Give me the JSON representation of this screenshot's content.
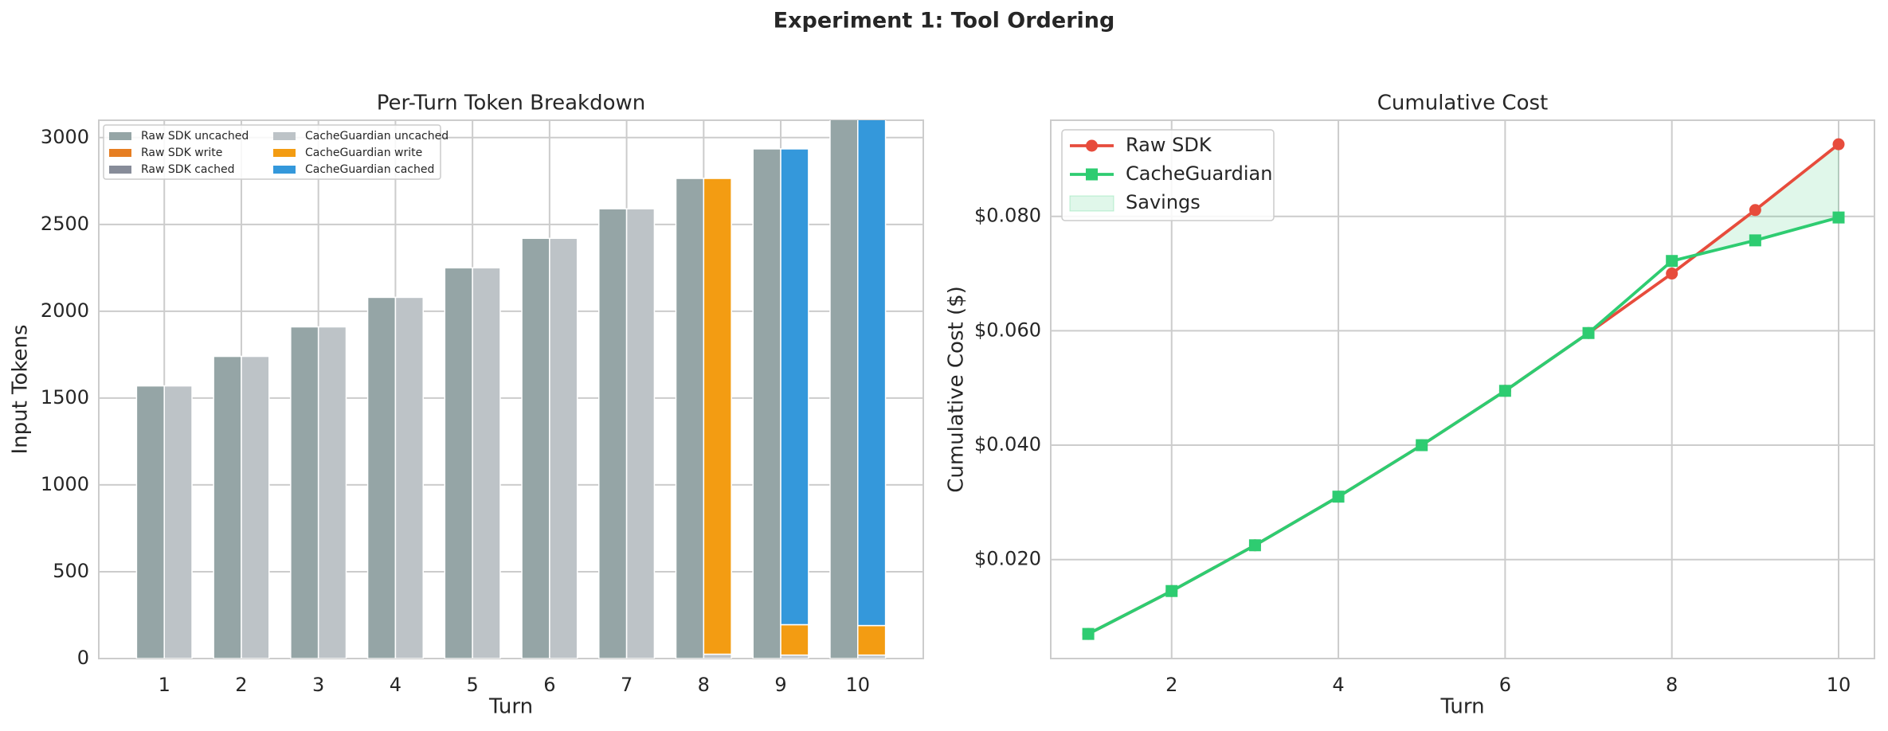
{
  "title": "Experiment 1: Tool Ordering",
  "chart_data": [
    {
      "type": "bar",
      "title": "Per-Turn Token Breakdown",
      "x_label": "Turn",
      "y_label": "Input Tokens",
      "categories": [
        "1",
        "2",
        "3",
        "4",
        "5",
        "6",
        "7",
        "8",
        "9",
        "10"
      ],
      "series": [
        {
          "name": "Raw SDK uncached",
          "color": "#95a5a6",
          "stack": 0,
          "values": [
            1570,
            1740,
            1910,
            2080,
            2250,
            2420,
            2590,
            2765,
            2935,
            3105
          ]
        },
        {
          "name": "Raw SDK write",
          "color": "#e67e22",
          "stack": 0,
          "values": [
            0,
            0,
            0,
            0,
            0,
            0,
            0,
            0,
            0,
            0
          ]
        },
        {
          "name": "Raw SDK cached",
          "color": "#878c99",
          "stack": 0,
          "values": [
            0,
            0,
            0,
            0,
            0,
            0,
            0,
            0,
            0,
            0
          ]
        },
        {
          "name": "CacheGuardian uncached",
          "color": "#bdc3c7",
          "stack": 1,
          "values": [
            1570,
            1740,
            1910,
            2080,
            2250,
            2420,
            2590,
            25,
            20,
            20
          ]
        },
        {
          "name": "CacheGuardian write",
          "color": "#f39c12",
          "stack": 1,
          "values": [
            0,
            0,
            0,
            0,
            0,
            0,
            0,
            2740,
            175,
            170
          ]
        },
        {
          "name": "CacheGuardian cached",
          "color": "#3498db",
          "stack": 1,
          "values": [
            0,
            0,
            0,
            0,
            0,
            0,
            0,
            0,
            2740,
            2915
          ]
        }
      ],
      "ylim": [
        0,
        3100
      ],
      "yticks": [
        0,
        500,
        1000,
        1500,
        2000,
        2500,
        3000
      ],
      "grid": true,
      "legend": "upper left",
      "legend_columns": 2
    },
    {
      "type": "line",
      "title": "Cumulative Cost",
      "x_label": "Turn",
      "y_label": "Cumulative Cost ($)",
      "x": [
        1,
        2,
        3,
        4,
        5,
        6,
        7,
        8,
        9,
        10
      ],
      "series": [
        {
          "name": "Raw SDK",
          "color": "#e74c3c",
          "marker": "circle",
          "values": [
            0.007,
            0.0145,
            0.0225,
            0.031,
            0.04,
            0.0495,
            0.0596,
            0.07,
            0.0811,
            0.0926
          ]
        },
        {
          "name": "CacheGuardian",
          "color": "#2ecc71",
          "marker": "square",
          "values": [
            0.007,
            0.0145,
            0.0225,
            0.031,
            0.04,
            0.0495,
            0.0596,
            0.0722,
            0.0758,
            0.0798
          ]
        }
      ],
      "fill": {
        "name": "Savings",
        "color": "#2ecc71",
        "opacity": 0.15
      },
      "xlim": [
        0.55,
        10.43
      ],
      "xticks": [
        2,
        4,
        6,
        8,
        10
      ],
      "ylim": [
        0.0027,
        0.0968
      ],
      "yticks": [
        {
          "value": 0.02,
          "label": "$0.020"
        },
        {
          "value": 0.04,
          "label": "$0.040"
        },
        {
          "value": 0.06,
          "label": "$0.060"
        },
        {
          "value": 0.08,
          "label": "$0.080"
        }
      ],
      "grid": true,
      "legend": "upper left"
    }
  ]
}
